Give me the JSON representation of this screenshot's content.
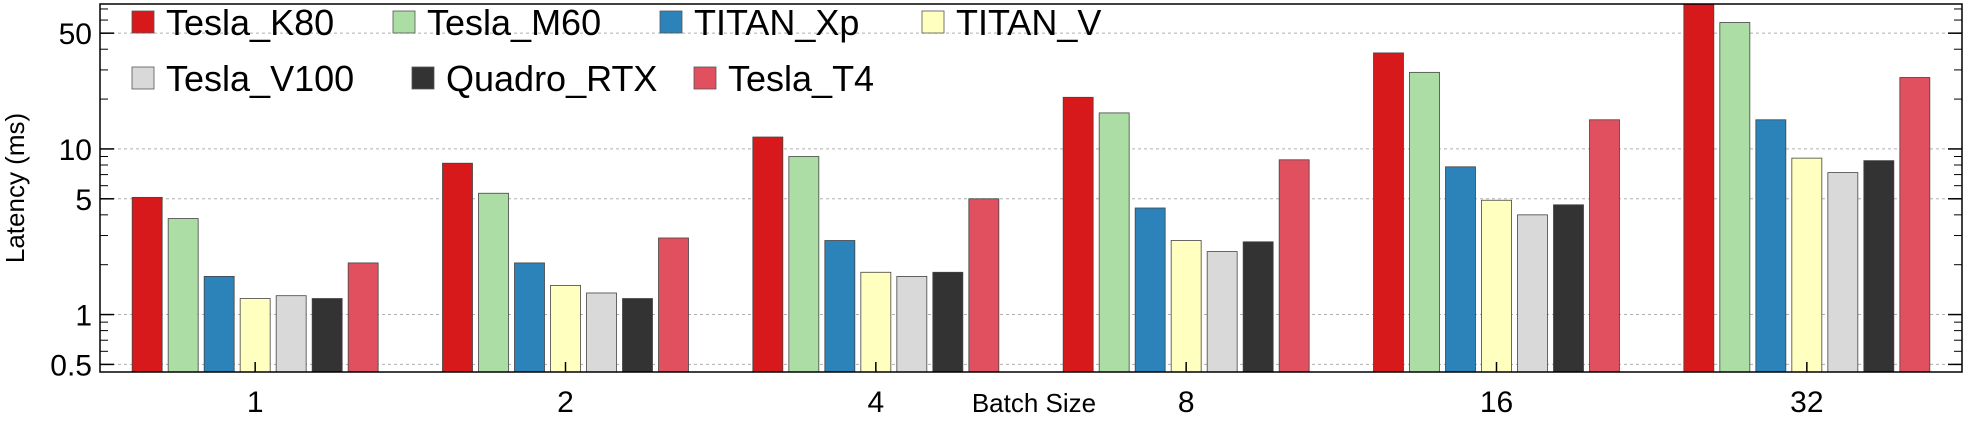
{
  "chart_data": {
    "type": "bar",
    "title": "",
    "xlabel": "Batch Size",
    "ylabel": "Latency (ms)",
    "yscale": "log",
    "ylim": [
      0.45,
      75
    ],
    "yticks": [
      {
        "value": 0.5,
        "label": "0.5"
      },
      {
        "value": 1,
        "label": "1"
      },
      {
        "value": 5,
        "label": "5"
      },
      {
        "value": 10,
        "label": "10"
      },
      {
        "value": 50,
        "label": "50"
      }
    ],
    "grid": true,
    "legend_position": "top-left",
    "categories": [
      "1",
      "2",
      "4",
      "8",
      "16",
      "32"
    ],
    "series": [
      {
        "name": "Tesla_K80",
        "color": "#d7191c",
        "values": [
          5.1,
          8.2,
          11.8,
          20.5,
          38,
          75
        ]
      },
      {
        "name": "Tesla_M60",
        "color": "#abdda4",
        "values": [
          3.8,
          5.4,
          9.0,
          16.5,
          29,
          58
        ]
      },
      {
        "name": "TITAN_Xp",
        "color": "#2b83ba",
        "values": [
          1.7,
          2.05,
          2.8,
          4.4,
          7.8,
          15
        ]
      },
      {
        "name": "TITAN_V",
        "color": "#ffffbf",
        "values": [
          1.25,
          1.5,
          1.8,
          2.8,
          4.9,
          8.8
        ]
      },
      {
        "name": "Tesla_V100",
        "color": "#d9d9d9",
        "values": [
          1.3,
          1.35,
          1.7,
          2.4,
          4.0,
          7.2
        ]
      },
      {
        "name": "Quadro_RTX",
        "color": "#333333",
        "values": [
          1.25,
          1.25,
          1.8,
          2.75,
          4.6,
          8.5
        ]
      },
      {
        "name": "Tesla_T4",
        "color": "#e0505f",
        "values": [
          2.05,
          2.9,
          5.0,
          8.6,
          15,
          27
        ]
      }
    ]
  }
}
